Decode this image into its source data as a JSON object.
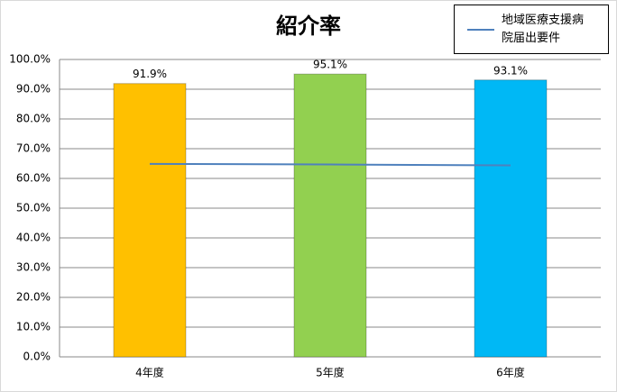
{
  "chart_data": {
    "type": "bar",
    "title": "紹介率",
    "categories": [
      "4年度",
      "5年度",
      "6年度"
    ],
    "values": [
      91.9,
      95.1,
      93.1
    ],
    "value_labels": [
      "91.9%",
      "95.1%",
      "93.1%"
    ],
    "colors": [
      "#ffc000",
      "#92d050",
      "#00b8f5"
    ],
    "lines": [
      {
        "name": "地域医療支援病院届出要件",
        "color": "#4f81bd",
        "values": [
          64.9,
          64.7,
          64.4
        ]
      }
    ],
    "ylim": [
      0,
      100
    ],
    "yticks": [
      {
        "value": 0,
        "label": "0.0%"
      },
      {
        "value": 10,
        "label": "10.0%"
      },
      {
        "value": 20,
        "label": "20.0%"
      },
      {
        "value": 30,
        "label": "30.0%"
      },
      {
        "value": 40,
        "label": "40.0%"
      },
      {
        "value": 50,
        "label": "50.0%"
      },
      {
        "value": 60,
        "label": "60.0%"
      },
      {
        "value": 70,
        "label": "70.0%"
      },
      {
        "value": 80,
        "label": "80.0%"
      },
      {
        "value": 90,
        "label": "90.0%"
      },
      {
        "value": 100,
        "label": "100.0%"
      }
    ],
    "grid": true,
    "legend": "top-right"
  }
}
